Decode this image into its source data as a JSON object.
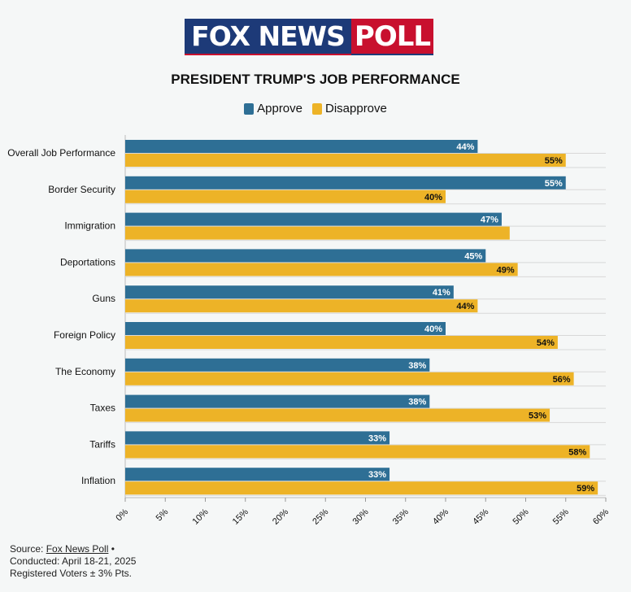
{
  "logo": {
    "part1": "FOX NEWS",
    "part2": "POLL"
  },
  "title": "PRESIDENT TRUMP'S JOB PERFORMANCE",
  "legend": [
    {
      "label": "Approve",
      "color": "#2e6f95"
    },
    {
      "label": "Disapprove",
      "color": "#edb327"
    }
  ],
  "chart_data": {
    "type": "bar",
    "orientation": "horizontal",
    "categories": [
      "Overall Job Performance",
      "Border Security",
      "Immigration",
      "Deportations",
      "Guns",
      "Foreign Policy",
      "The Economy",
      "Taxes",
      "Tariffs",
      "Inflation"
    ],
    "series": [
      {
        "name": "Approve",
        "color": "#2e6f95",
        "values": [
          44,
          55,
          47,
          45,
          41,
          40,
          38,
          38,
          33,
          33
        ],
        "labels": [
          "44%",
          "55%",
          "47%",
          "45%",
          "41%",
          "40%",
          "38%",
          "38%",
          "33%",
          "33%"
        ]
      },
      {
        "name": "Disapprove",
        "color": "#edb327",
        "values": [
          55,
          40,
          48,
          49,
          44,
          54,
          56,
          53,
          58,
          59
        ],
        "labels": [
          "55%",
          "40%",
          "",
          "49%",
          "44%",
          "54%",
          "56%",
          "53%",
          "58%",
          "59%"
        ]
      }
    ],
    "xlim": [
      0,
      60
    ],
    "xticks": [
      "0%",
      "5%",
      "10%",
      "15%",
      "20%",
      "25%",
      "30%",
      "35%",
      "40%",
      "45%",
      "50%",
      "55%",
      "60%"
    ],
    "grid": true,
    "legend_position": "top-center"
  },
  "source": {
    "prefix": "Source: ",
    "link": "Fox News Poll",
    "suffix": " •",
    "line2": "Conducted: April 18-21, 2025",
    "line3": "Registered Voters ± 3% Pts."
  }
}
